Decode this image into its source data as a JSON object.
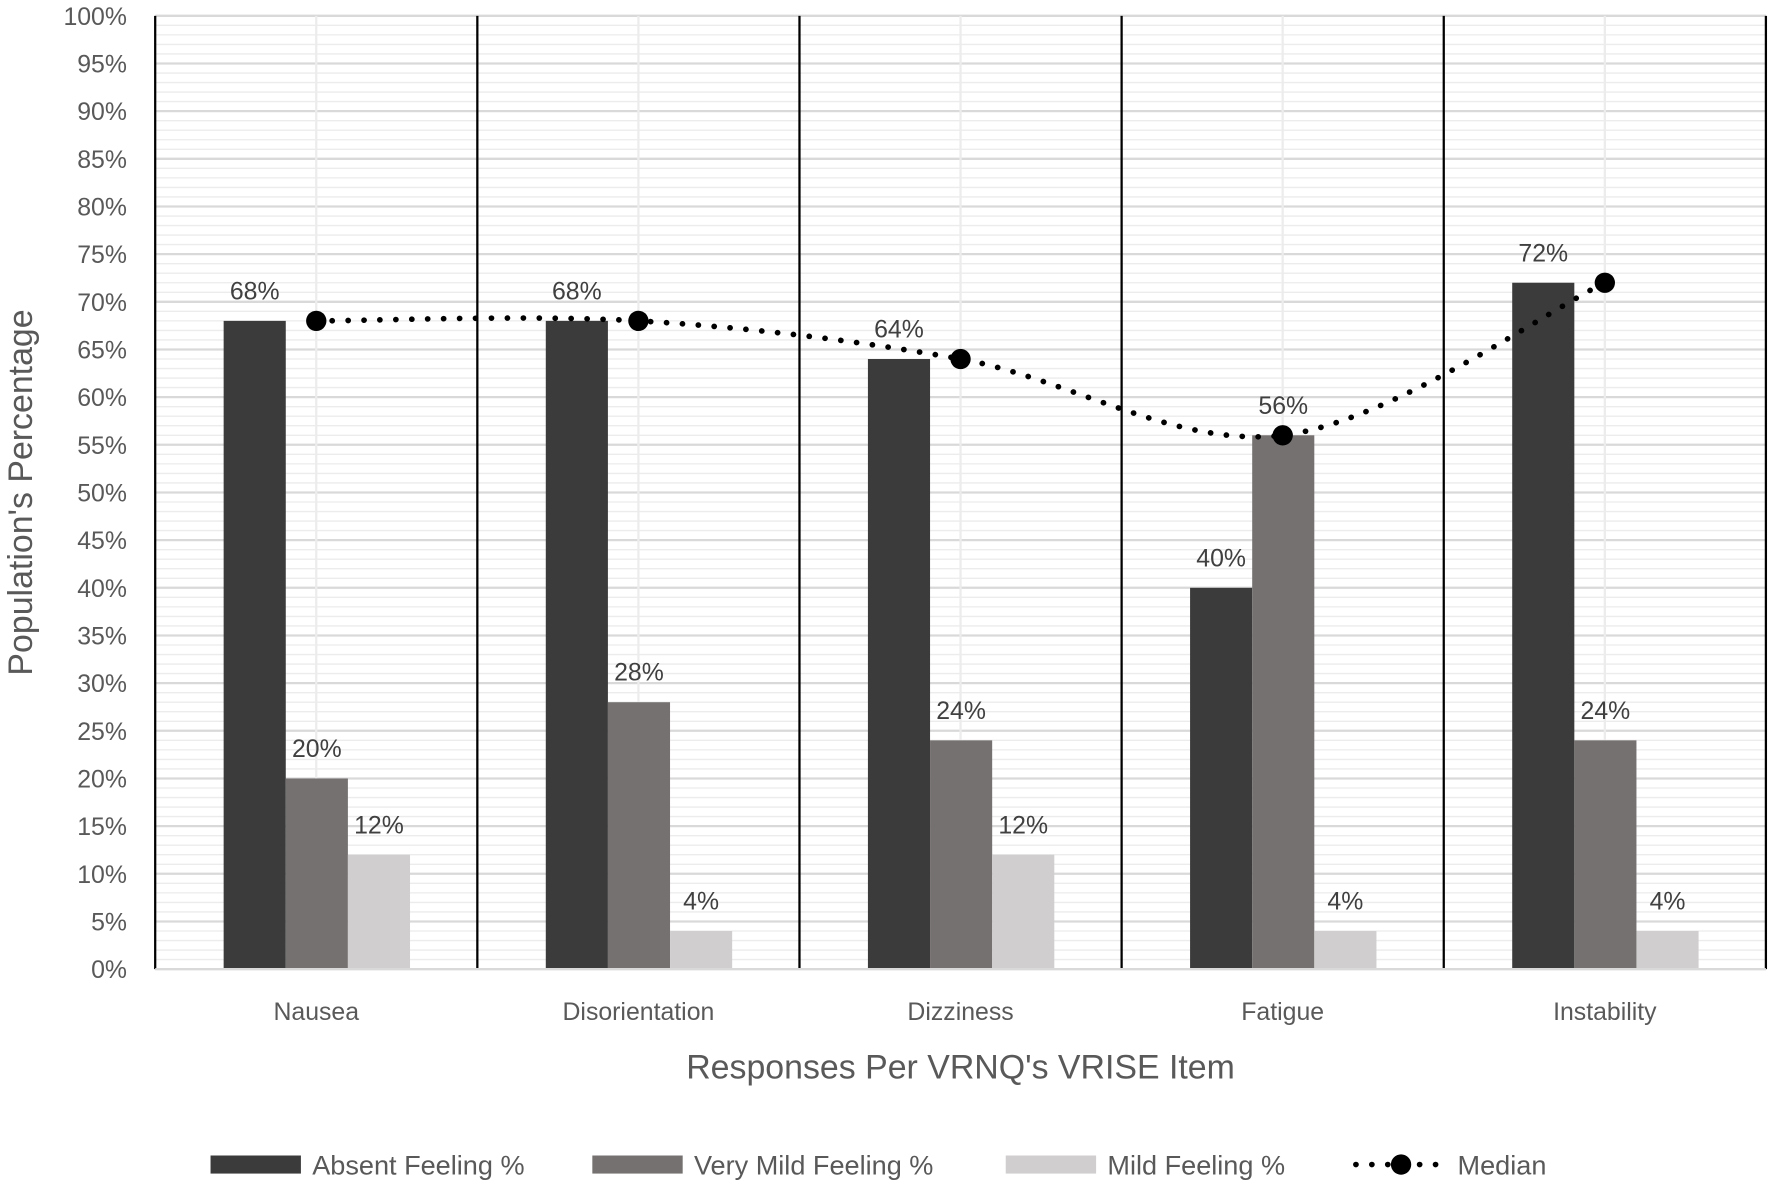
{
  "chart_data": {
    "type": "bar",
    "title": "",
    "xlabel": "Responses Per VRNQ's VRISE Item",
    "ylabel": "Population's Percentage",
    "ylim": [
      0,
      100
    ],
    "ytick_step": 5,
    "yticks": [
      "0%",
      "5%",
      "10%",
      "15%",
      "20%",
      "25%",
      "30%",
      "35%",
      "40%",
      "45%",
      "50%",
      "55%",
      "60%",
      "65%",
      "70%",
      "75%",
      "80%",
      "85%",
      "90%",
      "95%",
      "100%"
    ],
    "categories": [
      "Nausea",
      "Disorientation",
      "Dizziness",
      "Fatigue",
      "Instability"
    ],
    "series": [
      {
        "name": "Absent Feeling %",
        "type": "bar",
        "color": "#3b3b3b",
        "values": [
          68,
          68,
          64,
          40,
          72
        ],
        "labels": [
          "68%",
          "68%",
          "64%",
          "40%",
          "72%"
        ]
      },
      {
        "name": "Very Mild Feeling %",
        "type": "bar",
        "color": "#767171",
        "values": [
          20,
          28,
          24,
          56,
          24
        ],
        "labels": [
          "20%",
          "28%",
          "24%",
          "56%",
          "24%"
        ]
      },
      {
        "name": "Mild Feeling %",
        "type": "bar",
        "color": "#d0cece",
        "values": [
          12,
          4,
          12,
          4,
          4
        ],
        "labels": [
          "12%",
          "4%",
          "12%",
          "4%",
          "4%"
        ]
      },
      {
        "name": "Median",
        "type": "line",
        "style": "dotted-smooth",
        "color": "#000000",
        "values": [
          68,
          68,
          64,
          56,
          72
        ]
      }
    ],
    "grid": true,
    "legend_position": "bottom"
  }
}
